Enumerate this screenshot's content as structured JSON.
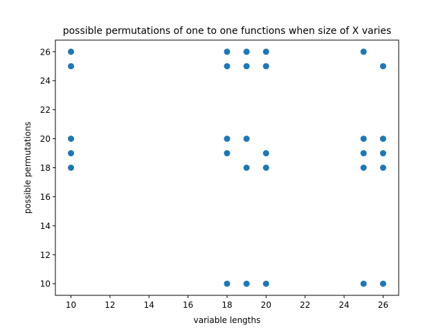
{
  "chart_data": {
    "type": "scatter",
    "title": "possible permutations of one to one functions when size of X varies",
    "xlabel": "variable lengths",
    "ylabel": "possible permutations",
    "xlim": [
      9.2,
      26.8
    ],
    "ylim": [
      9.2,
      26.8
    ],
    "xticks": [
      10,
      12,
      14,
      16,
      18,
      20,
      22,
      24,
      26
    ],
    "yticks": [
      10,
      12,
      14,
      16,
      18,
      20,
      22,
      24,
      26
    ],
    "grid": false,
    "series": [
      {
        "color": "#1f77b4",
        "points": [
          {
            "x": 10,
            "y": 26
          },
          {
            "x": 10,
            "y": 25
          },
          {
            "x": 10,
            "y": 20
          },
          {
            "x": 10,
            "y": 19
          },
          {
            "x": 10,
            "y": 18
          },
          {
            "x": 18,
            "y": 26
          },
          {
            "x": 18,
            "y": 25
          },
          {
            "x": 18,
            "y": 20
          },
          {
            "x": 18,
            "y": 19
          },
          {
            "x": 18,
            "y": 10
          },
          {
            "x": 19,
            "y": 26
          },
          {
            "x": 19,
            "y": 25
          },
          {
            "x": 19,
            "y": 20
          },
          {
            "x": 19,
            "y": 18
          },
          {
            "x": 19,
            "y": 10
          },
          {
            "x": 20,
            "y": 26
          },
          {
            "x": 20,
            "y": 25
          },
          {
            "x": 20,
            "y": 19
          },
          {
            "x": 20,
            "y": 18
          },
          {
            "x": 20,
            "y": 10
          },
          {
            "x": 25,
            "y": 26
          },
          {
            "x": 25,
            "y": 20
          },
          {
            "x": 25,
            "y": 19
          },
          {
            "x": 25,
            "y": 18
          },
          {
            "x": 25,
            "y": 10
          },
          {
            "x": 26,
            "y": 25
          },
          {
            "x": 26,
            "y": 20
          },
          {
            "x": 26,
            "y": 19
          },
          {
            "x": 26,
            "y": 18
          },
          {
            "x": 26,
            "y": 10
          }
        ]
      }
    ]
  }
}
